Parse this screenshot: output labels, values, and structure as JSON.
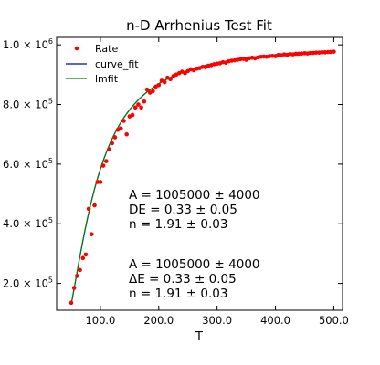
{
  "chart_data": {
    "type": "scatter",
    "title": "n-D Arrhenius Test Fit",
    "xlabel": "T",
    "ylabel": "",
    "xlim": [
      25,
      515
    ],
    "ylim": [
      110000,
      1025000
    ],
    "x_ticks": [
      100,
      200,
      300,
      400,
      500
    ],
    "x_tick_labels": [
      "100.0",
      "200.0",
      "300.0",
      "400.0",
      "500.0"
    ],
    "y_ticks": [
      200000,
      400000,
      600000,
      800000,
      1000000
    ],
    "y_tick_labels": [
      {
        "base": "2.0 × 10",
        "exp": "5"
      },
      {
        "base": "4.0 × 10",
        "exp": "5"
      },
      {
        "base": "6.0 × 10",
        "exp": "5"
      },
      {
        "base": "8.0 × 10",
        "exp": "5"
      },
      {
        "base": "1.0 × 10",
        "exp": "6"
      }
    ],
    "grid": false,
    "legend_position": "top-left",
    "legend": [
      {
        "label": "Rate",
        "kind": "marker",
        "color": "#ff0000"
      },
      {
        "label": "curve_fit",
        "kind": "line",
        "color": "#0000cc"
      },
      {
        "label": "lmfit",
        "kind": "line",
        "color": "#008000"
      }
    ],
    "fit_params": {
      "A": 1005000,
      "DE": 0.33,
      "n": 1.91
    },
    "annotations": [
      {
        "lines": [
          "A = 1005000 ± 4000",
          "DE = 0.33 ± 0.05",
          "n = 1.91 ± 0.03"
        ]
      },
      {
        "lines": [
          "A = 1005000 ± 4000",
          "ΔE = 0.33 ± 0.05",
          "n = 1.91 ± 0.03"
        ]
      }
    ],
    "series": [
      {
        "name": "Rate",
        "color": "#ff0000",
        "points": [
          [
            50,
            135000
          ],
          [
            55,
            185000
          ],
          [
            60,
            225000
          ],
          [
            65,
            245000
          ],
          [
            70,
            285000
          ],
          [
            75,
            297000
          ],
          [
            80,
            450000
          ],
          [
            85,
            365000
          ],
          [
            90,
            462000
          ],
          [
            95,
            540000
          ],
          [
            100,
            540000
          ],
          [
            105,
            595000
          ],
          [
            110,
            610000
          ],
          [
            115,
            650000
          ],
          [
            120,
            670000
          ],
          [
            125,
            690000
          ],
          [
            130,
            715000
          ],
          [
            135,
            720000
          ],
          [
            140,
            745000
          ],
          [
            145,
            700000
          ],
          [
            150,
            760000
          ],
          [
            155,
            765000
          ],
          [
            160,
            790000
          ],
          [
            165,
            800000
          ],
          [
            170,
            790000
          ],
          [
            175,
            810000
          ],
          [
            180,
            850000
          ],
          [
            185,
            840000
          ],
          [
            190,
            845000
          ],
          [
            195,
            860000
          ],
          [
            200,
            865000
          ],
          [
            205,
            880000
          ],
          [
            210,
            875000
          ],
          [
            215,
            890000
          ],
          [
            220,
            885000
          ],
          [
            225,
            895000
          ],
          [
            230,
            900000
          ],
          [
            235,
            905000
          ],
          [
            240,
            910000
          ],
          [
            245,
            905000
          ],
          [
            250,
            912000
          ],
          [
            255,
            918000
          ],
          [
            260,
            915000
          ],
          [
            265,
            920000
          ],
          [
            270,
            922000
          ],
          [
            275,
            926000
          ],
          [
            280,
            925000
          ],
          [
            285,
            930000
          ],
          [
            290,
            932000
          ],
          [
            295,
            935000
          ],
          [
            300,
            937000
          ],
          [
            305,
            938000
          ],
          [
            310,
            942000
          ],
          [
            315,
            940000
          ],
          [
            320,
            945000
          ],
          [
            325,
            947000
          ],
          [
            330,
            948000
          ],
          [
            335,
            950000
          ],
          [
            340,
            952000
          ],
          [
            345,
            953000
          ],
          [
            350,
            950000
          ],
          [
            355,
            955000
          ],
          [
            360,
            957000
          ],
          [
            365,
            955000
          ],
          [
            370,
            958000
          ],
          [
            375,
            960000
          ],
          [
            380,
            961000
          ],
          [
            385,
            960000
          ],
          [
            390,
            962000
          ],
          [
            395,
            963000
          ],
          [
            400,
            962000
          ],
          [
            405,
            966000
          ],
          [
            410,
            965000
          ],
          [
            415,
            968000
          ],
          [
            420,
            966000
          ],
          [
            425,
            969000
          ],
          [
            430,
            968000
          ],
          [
            435,
            970000
          ],
          [
            440,
            970000
          ],
          [
            445,
            971000
          ],
          [
            450,
            972000
          ],
          [
            455,
            971000
          ],
          [
            460,
            973000
          ],
          [
            465,
            973000
          ],
          [
            470,
            974000
          ],
          [
            475,
            974000
          ],
          [
            480,
            975000
          ],
          [
            485,
            975000
          ],
          [
            490,
            976000
          ],
          [
            495,
            976000
          ],
          [
            500,
            977000
          ]
        ]
      }
    ]
  }
}
